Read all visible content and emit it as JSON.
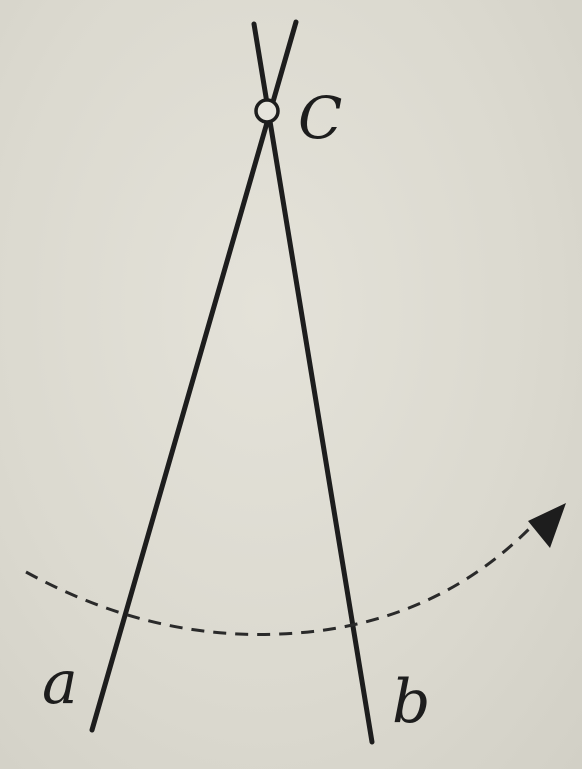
{
  "diagram": {
    "labels": {
      "pivot": "C",
      "rod_left": "a",
      "rod_right": "b"
    },
    "colors": {
      "ink": "#1d1d1d",
      "paper": "#dcdad1"
    }
  }
}
